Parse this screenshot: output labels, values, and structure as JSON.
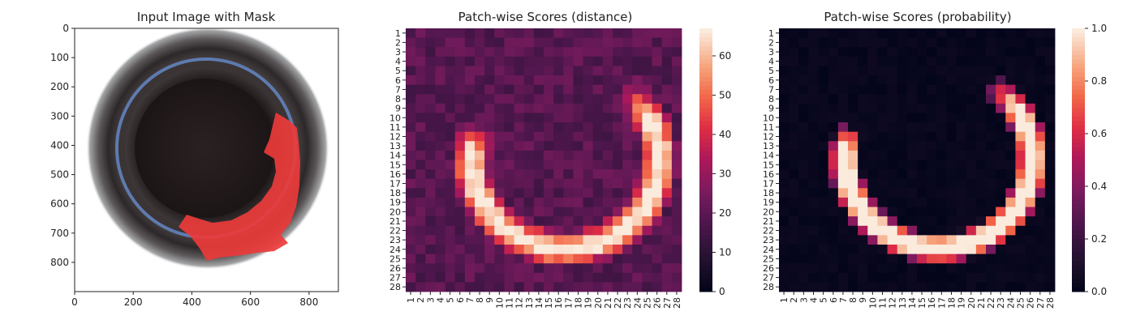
{
  "colors": {
    "mask_fill": "#ec3b3b",
    "mask_overlay": "#ff2828",
    "bottle_rim_light": "#a4a6a8",
    "bottle_rim_dark": "#2c2728",
    "bottle_inner": "#231b1c",
    "blue_ring": "#5e7bb0"
  },
  "panels": [
    {
      "id": "input_image",
      "title": "Input Image with Mask",
      "xticks": [
        "0",
        "200",
        "400",
        "600",
        "800"
      ],
      "yticks": [
        "0",
        "100",
        "200",
        "300",
        "400",
        "500",
        "600",
        "700",
        "800"
      ],
      "xlim": [
        0,
        900
      ],
      "ylim": [
        900,
        0
      ]
    }
  ],
  "chart_data": [
    {
      "type": "heatmap",
      "title": "Patch-wise Scores (distance)",
      "x_labels": [
        "1",
        "2",
        "3",
        "4",
        "5",
        "6",
        "7",
        "8",
        "9",
        "10",
        "11",
        "12",
        "13",
        "14",
        "15",
        "16",
        "17",
        "18",
        "19",
        "20",
        "21",
        "22",
        "23",
        "24",
        "25",
        "26",
        "27",
        "28"
      ],
      "y_labels": [
        "1",
        "2",
        "3",
        "4",
        "5",
        "6",
        "7",
        "8",
        "9",
        "10",
        "11",
        "12",
        "13",
        "14",
        "15",
        "16",
        "17",
        "18",
        "19",
        "20",
        "21",
        "22",
        "23",
        "24",
        "25",
        "26",
        "27",
        "28"
      ],
      "value_range": [
        0,
        67
      ],
      "colorbar_ticks": [
        "0",
        "10",
        "20",
        "30",
        "40",
        "50",
        "60"
      ],
      "colorbar_values": [
        0,
        10,
        20,
        30,
        40,
        50,
        60
      ],
      "colormap": "rocket",
      "band": {
        "cx": 16.2,
        "cy": 13.9,
        "r_in": 7.5,
        "r_out": 11.6,
        "start_deg": 55,
        "end_deg": -15
      },
      "peak": 67,
      "base": 18
    },
    {
      "type": "heatmap",
      "title": "Patch-wise Scores (probability)",
      "x_labels": [
        "1",
        "2",
        "3",
        "4",
        "5",
        "6",
        "7",
        "8",
        "9",
        "10",
        "11",
        "12",
        "13",
        "14",
        "15",
        "16",
        "17",
        "18",
        "19",
        "20",
        "21",
        "22",
        "23",
        "24",
        "25",
        "26",
        "27",
        "28"
      ],
      "y_labels": [
        "1",
        "2",
        "3",
        "4",
        "5",
        "6",
        "7",
        "8",
        "9",
        "10",
        "11",
        "12",
        "13",
        "14",
        "15",
        "16",
        "17",
        "18",
        "19",
        "20",
        "21",
        "22",
        "23",
        "24",
        "25",
        "26",
        "27",
        "28"
      ],
      "value_range": [
        0,
        1
      ],
      "colorbar_ticks": [
        "0.0",
        "0.2",
        "0.4",
        "0.6",
        "0.8",
        "1.0"
      ],
      "colorbar_values": [
        0,
        0.2,
        0.4,
        0.6,
        0.8,
        1.0
      ],
      "colormap": "rocket",
      "band": {
        "cx": 16.2,
        "cy": 13.9,
        "r_in": 7.8,
        "r_out": 11.2,
        "start_deg": 60,
        "end_deg": -18
      },
      "peak": 1,
      "base": 0
    }
  ]
}
